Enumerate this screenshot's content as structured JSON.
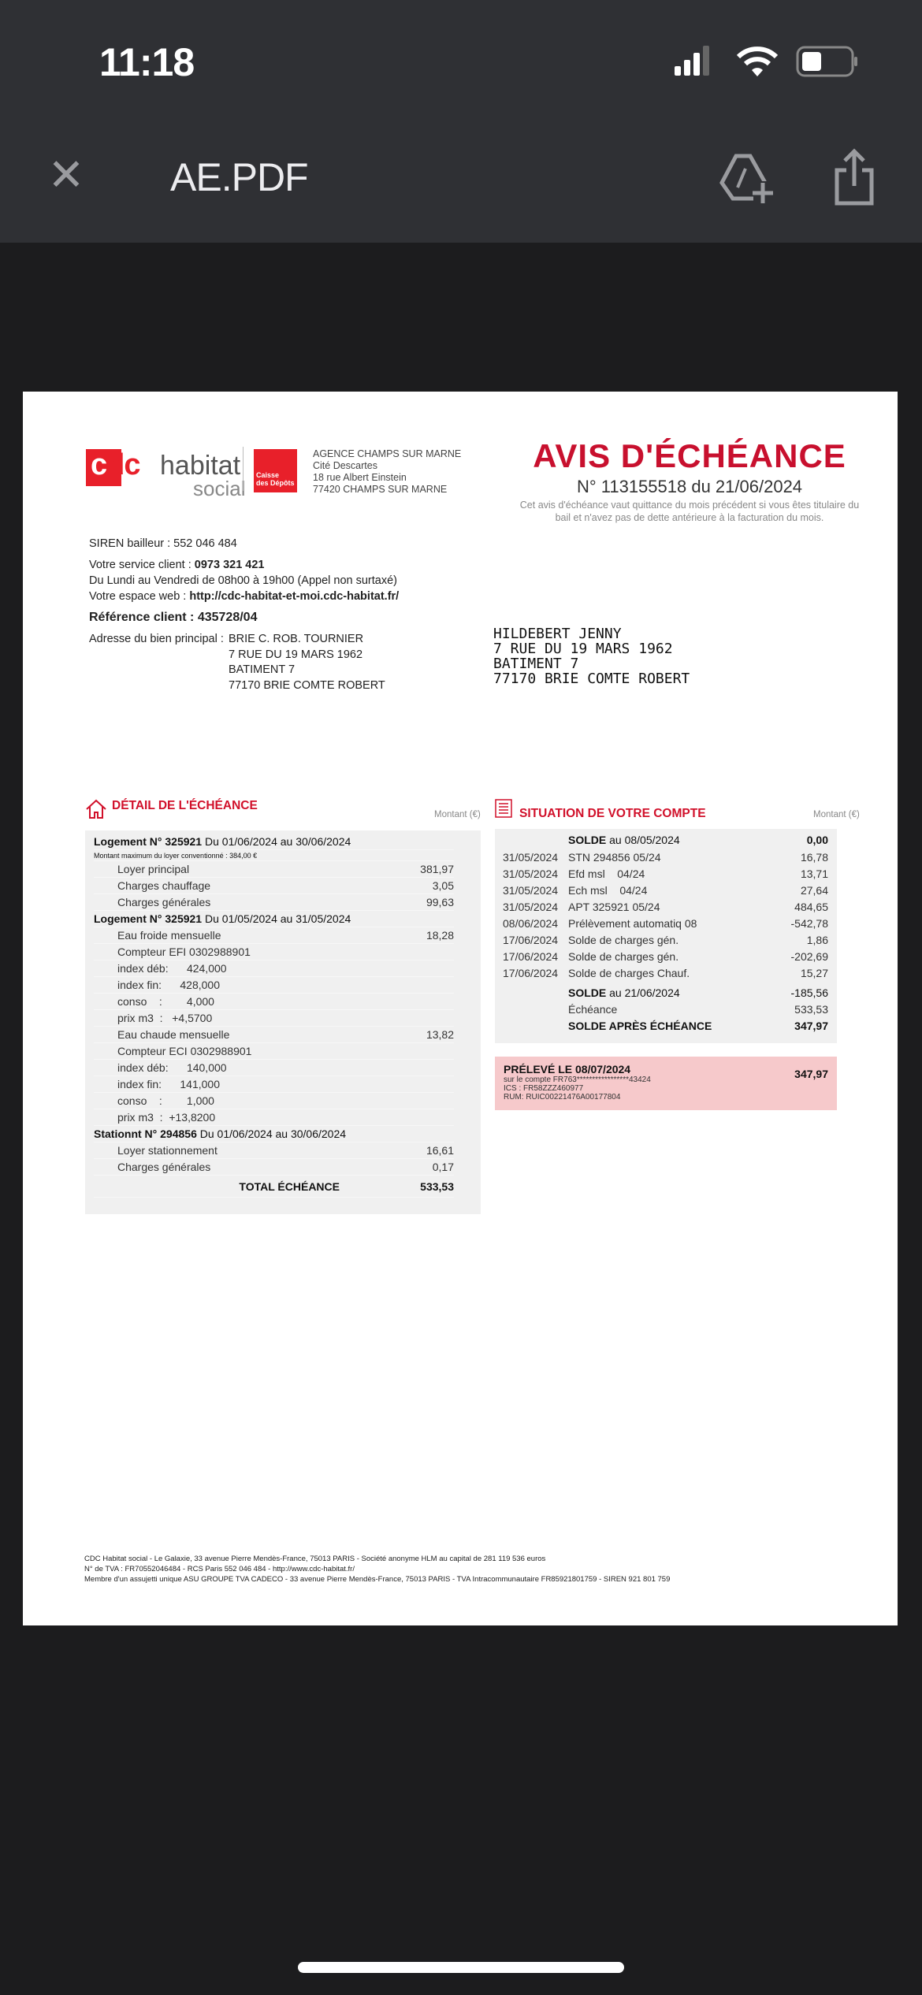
{
  "status_bar": {
    "time": "11:18",
    "signal_bars": 3,
    "battery_level": 0.35
  },
  "toolbar": {
    "close_icon": "close-icon",
    "title": "AE.PDF",
    "markup_icon": "markup-plus-icon",
    "share_icon": "share-icon"
  },
  "document": {
    "logo": {
      "brand": "cdc habitat",
      "sub": "social",
      "partner": "Caisse des Dépôts GROUPE"
    },
    "agency": [
      "AGENCE CHAMPS SUR MARNE",
      "Cité Descartes",
      "18 rue Albert Einstein",
      "77420 CHAMPS SUR MARNE"
    ],
    "title": "AVIS D'ÉCHÉANCE",
    "number_line": "N° 113155518 du 21/06/2024",
    "note": [
      "Cet avis d'échéance vaut quittance du mois précédent si vous êtes titulaire du",
      "bail et n'avez pas de dette antérieure à la facturation du mois."
    ],
    "siren": "SIREN bailleur : 552 046 484",
    "service_label": "Votre service client : ",
    "service_phone": "0973 321 421",
    "hours": "Du Lundi au Vendredi de 08h00 à 19h00 (Appel non surtaxé)",
    "web_label": "Votre espace web : ",
    "web_url": "http://cdc-habitat-et-moi.cdc-habitat.fr/",
    "reference": "Référence client : 435728/04",
    "address_label": "Adresse du bien principal : ",
    "address": [
      "BRIE C. ROB. TOURNIER",
      "7 RUE DU 19 MARS 1962",
      "BATIMENT 7",
      "77170 BRIE COMTE ROBERT"
    ],
    "recipient": [
      "HILDEBERT JENNY",
      "7 RUE DU 19 MARS 1962",
      "BATIMENT 7",
      "77170 BRIE COMTE ROBERT"
    ],
    "detail": {
      "title": "DÉTAIL DE  L'ÉCHÉANCE",
      "amount_header": "Montant (€)",
      "rows": [
        {
          "type": "hdr",
          "bold": "Logement N° 325921",
          "text": " Du 01/06/2024 au 30/06/2024"
        },
        {
          "type": "small",
          "text": "Montant maximum du loyer conventionné : 384,00 €"
        },
        {
          "type": "item",
          "text": "Loyer principal",
          "value": "381,97"
        },
        {
          "type": "item",
          "text": "Charges chauffage",
          "value": "3,05"
        },
        {
          "type": "item",
          "text": "Charges générales",
          "value": "99,63"
        },
        {
          "type": "hdr",
          "bold": "Logement N° 325921",
          "text": " Du 01/05/2024 au 31/05/2024"
        },
        {
          "type": "item",
          "text": "Eau froide mensuelle",
          "value": "18,28"
        },
        {
          "type": "item",
          "text": "Compteur EFI 0302988901",
          "value": ""
        },
        {
          "type": "item",
          "text": "index déb:      424,000",
          "value": ""
        },
        {
          "type": "item",
          "text": "index fin:      428,000",
          "value": ""
        },
        {
          "type": "item",
          "text": "conso    :        4,000",
          "value": ""
        },
        {
          "type": "item",
          "text": "prix m3  :   +4,5700",
          "value": ""
        },
        {
          "type": "item",
          "text": "Eau chaude mensuelle",
          "value": "13,82"
        },
        {
          "type": "item",
          "text": "Compteur ECI 0302988901",
          "value": ""
        },
        {
          "type": "item",
          "text": "index déb:      140,000",
          "value": ""
        },
        {
          "type": "item",
          "text": "index fin:      141,000",
          "value": ""
        },
        {
          "type": "item",
          "text": "conso    :        1,000",
          "value": ""
        },
        {
          "type": "item",
          "text": "prix m3  :  +13,8200",
          "value": ""
        },
        {
          "type": "hdr",
          "bold": "Stationnt N° 294856",
          "text": " Du 01/06/2024 au 30/06/2024"
        },
        {
          "type": "item",
          "text": "Loyer stationnement",
          "value": "16,61"
        },
        {
          "type": "item",
          "text": "Charges générales",
          "value": "0,17"
        }
      ],
      "total_label": "TOTAL ÉCHÉANCE",
      "total_value": "533,53"
    },
    "account": {
      "title": "SITUATION DE VOTRE COMPTE",
      "amount_header": "Montant (€)",
      "opening": {
        "bold": "SOLDE",
        "text": " au 08/05/2024",
        "value": "0,00"
      },
      "rows": [
        {
          "date": "31/05/2024",
          "label": "STN 294856 05/24",
          "value": "16,78"
        },
        {
          "date": "31/05/2024",
          "label": "Efd msl    04/24",
          "value": "13,71"
        },
        {
          "date": "31/05/2024",
          "label": "Ech msl    04/24",
          "value": "27,64"
        },
        {
          "date": "31/05/2024",
          "label": "APT 325921 05/24",
          "value": "484,65"
        },
        {
          "date": "08/06/2024",
          "label": "Prélèvement automatiq 08",
          "value": "-542,78"
        },
        {
          "date": "17/06/2024",
          "label": "Solde de charges gén.",
          "value": "1,86"
        },
        {
          "date": "17/06/2024",
          "label": "Solde de charges gén.",
          "value": "-202,69"
        },
        {
          "date": "17/06/2024",
          "label": "Solde de charges Chauf.",
          "value": "15,27"
        }
      ],
      "closing": {
        "bold": "SOLDE",
        "text": " au 21/06/2024",
        "value": "-185,56"
      },
      "echeance": {
        "label": "Échéance",
        "value": "533,53"
      },
      "after": {
        "label": "SOLDE APRÈS ÉCHÉANCE",
        "value": "347,97"
      }
    },
    "debit": {
      "title": "PRÉLEVÉ LE 08/07/2024",
      "account": "sur le compte FR763*****************43424",
      "ics": "ICS : FR58ZZZ460977",
      "rum": "RUM: RUIC00221476A00177804",
      "value": "347,97"
    },
    "footer": [
      "CDC Habitat social - Le Galaxie, 33 avenue Pierre Mendès-France, 75013 PARIS - Société anonyme HLM  au capital de 281 119 536 euros",
      "N° de TVA : FR70552046484 - RCS Paris 552 046 484 - http://www.cdc-habitat.fr/",
      "Membre d'un assujetti unique ASU GROUPE TVA CADECO - 33 avenue Pierre Mendès-France, 75013 PARIS - TVA Intracommunautaire FR85921801759 - SIREN 921 801 759"
    ]
  },
  "colors": {
    "accent": "#c8102e",
    "toolbar": "#2f3034",
    "background": "#1c1c1e",
    "debit_box": "#f6c9cb"
  }
}
